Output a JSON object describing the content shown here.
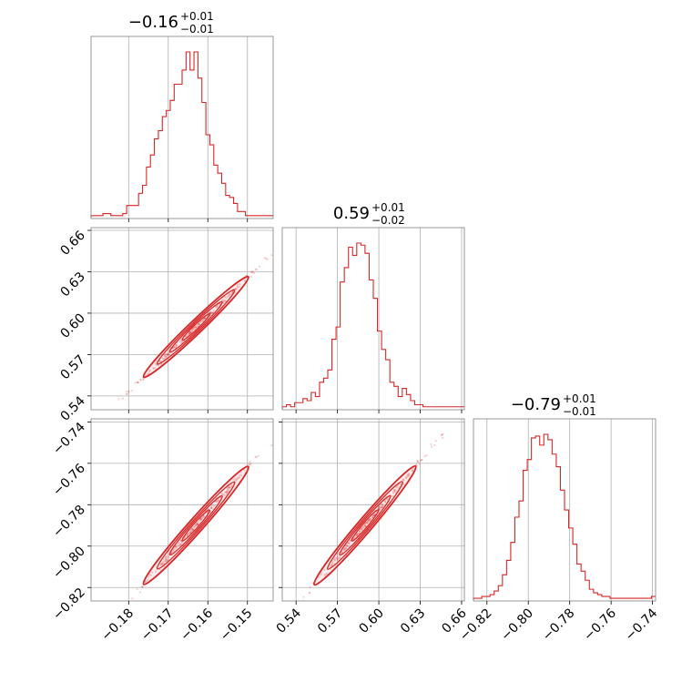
{
  "chart_data": {
    "type": "corner",
    "color": "#d62728",
    "parameters": [
      {
        "title": {
          "median": "−0.16",
          "plus": "+0.01",
          "minus": "−0.01"
        },
        "range": [
          -0.1895,
          -0.1435
        ],
        "ticks": [
          -0.18,
          -0.17,
          -0.16,
          -0.15
        ],
        "tick_labels": [
          "−0.18",
          "−0.17",
          "−0.16",
          "−0.15"
        ],
        "hist_x_start": -0.1895,
        "hist_bin_width": 0.001,
        "hist_counts": [
          1,
          1,
          1,
          2,
          2,
          1,
          1,
          1,
          2,
          6,
          6,
          6,
          12,
          16,
          25,
          31,
          39,
          43,
          50,
          53,
          58,
          66,
          66,
          73,
          82,
          73,
          82,
          69,
          57,
          41,
          36,
          26,
          22,
          17,
          11,
          10,
          7,
          3,
          3,
          1,
          1,
          1,
          1,
          1,
          1,
          1
        ]
      },
      {
        "title": {
          "median": "0.59",
          "plus": "+0.01",
          "minus": "−0.02"
        },
        "range": [
          0.53,
          0.662
        ],
        "ticks": [
          0.54,
          0.57,
          0.6,
          0.63,
          0.66
        ],
        "tick_labels": [
          "0.54",
          "0.57",
          "0.60",
          "0.63",
          "0.66"
        ],
        "hist_x_start": 0.53,
        "hist_bin_width": 0.003,
        "hist_counts": [
          1,
          2,
          1,
          3,
          3,
          5,
          4,
          8,
          6,
          13,
          15,
          19,
          34,
          40,
          62,
          69,
          79,
          75,
          81,
          80,
          76,
          63,
          54,
          38,
          29,
          24,
          13,
          11,
          6,
          10,
          7,
          4,
          2,
          2,
          1,
          1,
          1,
          1,
          1,
          1,
          1,
          1,
          1,
          1
        ]
      },
      {
        "title": {
          "median": "−0.79",
          "plus": "+0.01",
          "minus": "−0.01"
        },
        "range": [
          -0.8265,
          -0.7385
        ],
        "ticks": [
          -0.82,
          -0.8,
          -0.78,
          -0.76,
          -0.74
        ],
        "tick_labels": [
          "−0.82",
          "−0.80",
          "−0.78",
          "−0.76",
          "−0.74"
        ],
        "hist_x_start": -0.8265,
        "hist_bin_width": 0.002,
        "hist_counts": [
          1,
          1,
          2,
          2,
          3,
          5,
          8,
          14,
          22,
          32,
          46,
          55,
          72,
          78,
          90,
          91,
          86,
          92,
          89,
          81,
          74,
          61,
          50,
          40,
          31,
          20,
          16,
          11,
          6,
          4,
          3,
          2,
          2,
          1,
          1,
          1,
          1,
          1,
          1,
          1,
          1,
          1,
          1,
          2
        ]
      }
    ],
    "pairs": [
      {
        "x_param": 0,
        "y_param": 1,
        "slope": 2.75,
        "x_center": -0.163,
        "y_center": 0.59,
        "x_sd": 0.0063
      },
      {
        "x_param": 0,
        "y_param": 2,
        "slope": 2.15,
        "x_center": -0.163,
        "y_center": -0.79,
        "x_sd": 0.0063
      },
      {
        "x_param": 1,
        "y_param": 2,
        "slope": 0.78,
        "x_center": 0.59,
        "y_center": -0.79,
        "x_sd": 0.0175
      }
    ]
  }
}
